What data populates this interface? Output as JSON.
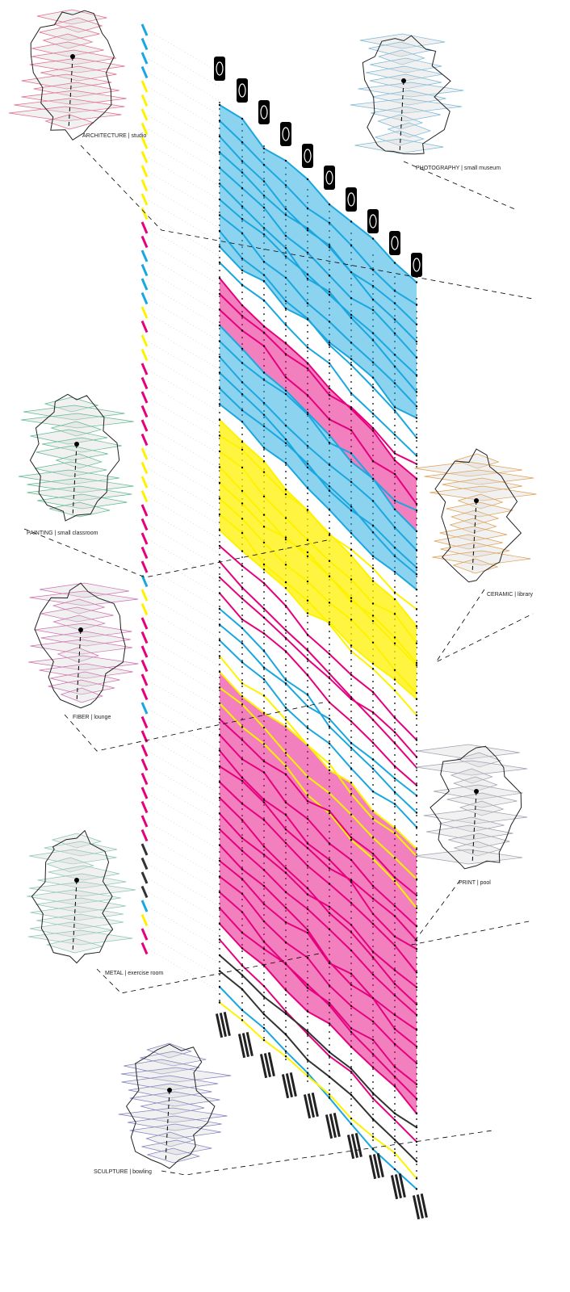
{
  "figures": [
    {
      "label": "ARCHITECTURE | studio"
    },
    {
      "label": "PHOTOGRAPHY | small museum"
    },
    {
      "label": "PAINTING | small classroom"
    },
    {
      "label": "CERAMIC | library"
    },
    {
      "label": "FIBER | lounge"
    },
    {
      "label": "PRINT | pool"
    },
    {
      "label": "METAL | exercise room"
    },
    {
      "label": "SCULPTURE | bowling"
    }
  ]
}
